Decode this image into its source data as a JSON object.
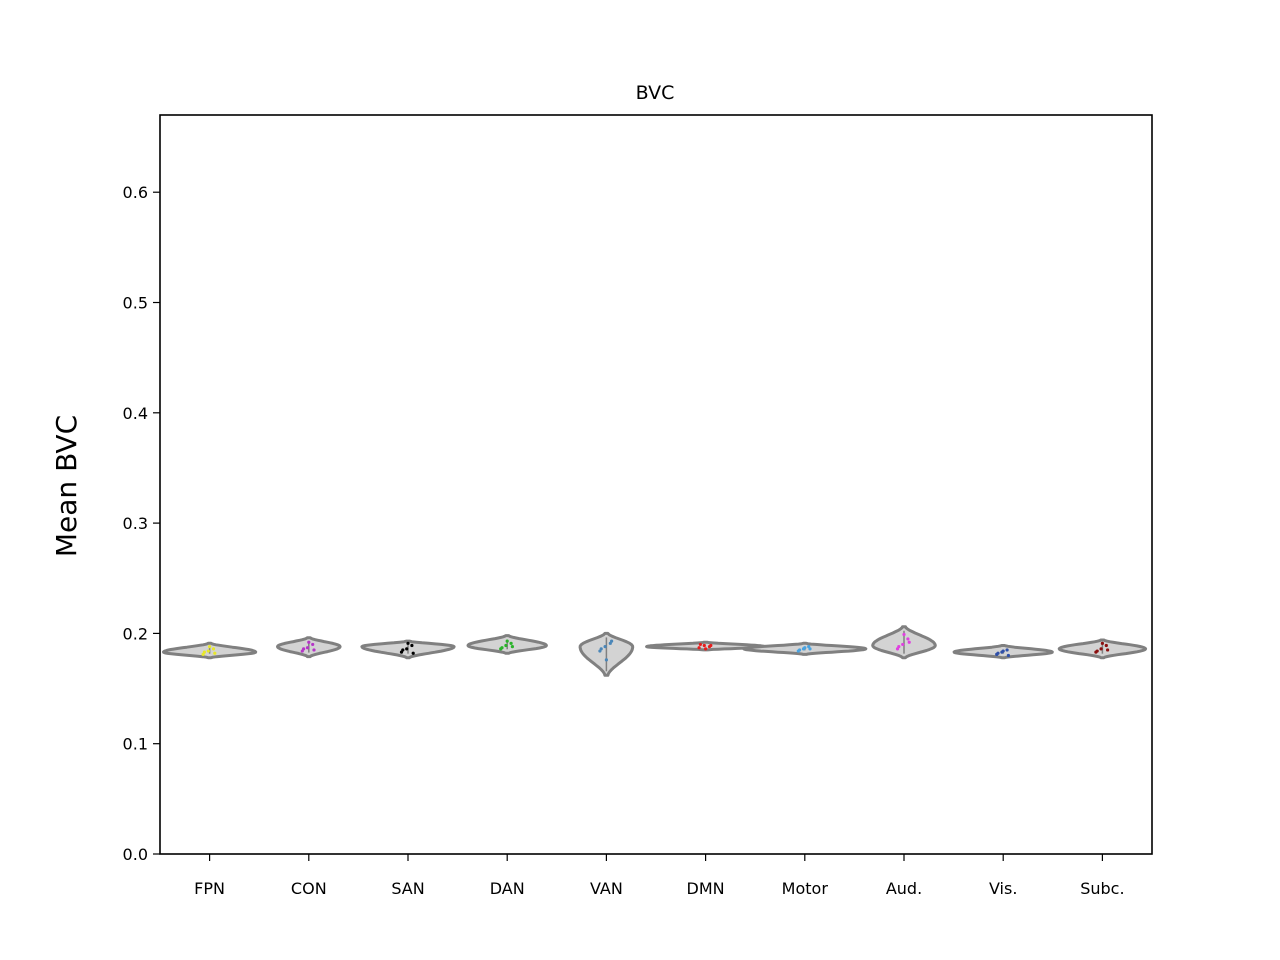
{
  "chart_data": {
    "type": "violin",
    "title": "BVC",
    "xlabel": "",
    "ylabel": "Mean BVC",
    "ylim": [
      0.0,
      0.67
    ],
    "yticks": [
      "0.0",
      "0.1",
      "0.2",
      "0.3",
      "0.4",
      "0.5",
      "0.6"
    ],
    "categories": [
      "FPN",
      "CON",
      "SAN",
      "DAN",
      "VAN",
      "DMN",
      "Motor",
      "Aud.",
      "Vis.",
      "Subc."
    ],
    "violins": [
      {
        "name": "FPN",
        "color": "#e8e82a",
        "min": 0.178,
        "max": 0.191,
        "center": 0.183,
        "halfwidth": 0.45,
        "points": [
          0.181,
          0.184,
          0.186,
          0.183,
          0.188,
          0.182
        ]
      },
      {
        "name": "CON",
        "color": "#b535c8",
        "min": 0.179,
        "max": 0.196,
        "center": 0.188,
        "halfwidth": 0.3,
        "points": [
          0.184,
          0.187,
          0.19,
          0.186,
          0.192,
          0.185
        ]
      },
      {
        "name": "SAN",
        "color": "#000000",
        "min": 0.178,
        "max": 0.193,
        "center": 0.188,
        "halfwidth": 0.45,
        "points": [
          0.183,
          0.186,
          0.189,
          0.185,
          0.191,
          0.182
        ]
      },
      {
        "name": "DAN",
        "color": "#2ab32a",
        "min": 0.182,
        "max": 0.198,
        "center": 0.189,
        "halfwidth": 0.38,
        "points": [
          0.186,
          0.189,
          0.191,
          0.187,
          0.193,
          0.188
        ]
      },
      {
        "name": "VAN",
        "color": "#4a86b8",
        "min": 0.162,
        "max": 0.2,
        "center": 0.188,
        "halfwidth": 0.25,
        "points": [
          0.184,
          0.188,
          0.191,
          0.186,
          0.176,
          0.193
        ]
      },
      {
        "name": "DMN",
        "color": "#e61e1e",
        "min": 0.185,
        "max": 0.192,
        "center": 0.188,
        "halfwidth": 0.58,
        "points": [
          0.187,
          0.189,
          0.188,
          0.19,
          0.186,
          0.189
        ]
      },
      {
        "name": "Motor",
        "color": "#4aa3e0",
        "min": 0.181,
        "max": 0.191,
        "center": 0.186,
        "halfwidth": 0.6,
        "points": [
          0.184,
          0.186,
          0.188,
          0.185,
          0.187,
          0.186
        ]
      },
      {
        "name": "Aud.",
        "color": "#e040e0",
        "min": 0.178,
        "max": 0.206,
        "center": 0.189,
        "halfwidth": 0.3,
        "points": [
          0.186,
          0.19,
          0.195,
          0.188,
          0.199,
          0.192
        ]
      },
      {
        "name": "Vis.",
        "color": "#3050a8",
        "min": 0.178,
        "max": 0.189,
        "center": 0.183,
        "halfwidth": 0.48,
        "points": [
          0.181,
          0.183,
          0.185,
          0.182,
          0.184,
          0.18
        ]
      },
      {
        "name": "Subc.",
        "color": "#8b1010",
        "min": 0.178,
        "max": 0.194,
        "center": 0.186,
        "halfwidth": 0.42,
        "points": [
          0.183,
          0.186,
          0.189,
          0.184,
          0.191,
          0.185
        ]
      }
    ],
    "violin_fill": "#d3d3d3",
    "violin_stroke": "#808080",
    "grid": false,
    "legend": "none"
  }
}
